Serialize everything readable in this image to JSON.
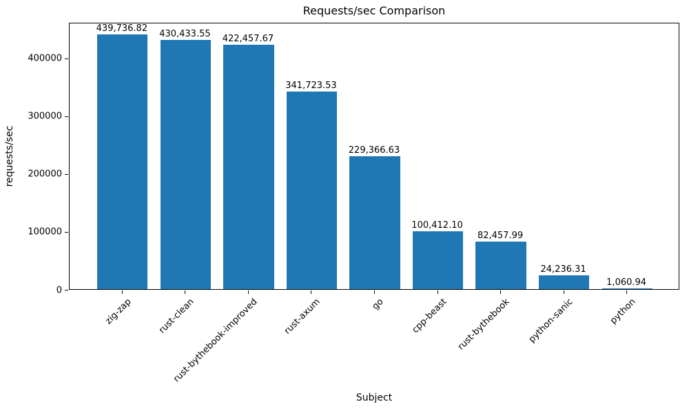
{
  "chart_data": {
    "type": "bar",
    "title": "Requests/sec Comparison",
    "xlabel": "Subject",
    "ylabel": "requests/sec",
    "categories": [
      "zig-zap",
      "rust-clean",
      "rust-bythebook-improved",
      "rust-axum",
      "go",
      "cpp-beast",
      "rust-bythebook",
      "python-sanic",
      "python"
    ],
    "values": [
      439736.82,
      430433.55,
      422457.67,
      341723.53,
      229366.63,
      100412.1,
      82457.99,
      24236.31,
      1060.94
    ],
    "value_labels": [
      "439,736.82",
      "430,433.55",
      "422,457.67",
      "341,723.53",
      "229,366.63",
      "100,412.10",
      "82,457.99",
      "24,236.31",
      "1,060.94"
    ],
    "y_ticks": [
      0,
      100000,
      200000,
      300000,
      400000
    ],
    "y_tick_labels": [
      "0",
      "100000",
      "200000",
      "300000",
      "400000"
    ],
    "ylim": [
      0,
      461723.66
    ],
    "bar_color": "#1f77b4",
    "bar_rel_width": 0.8,
    "grid": false,
    "legend": null,
    "x_tick_rotation_deg": 45
  }
}
